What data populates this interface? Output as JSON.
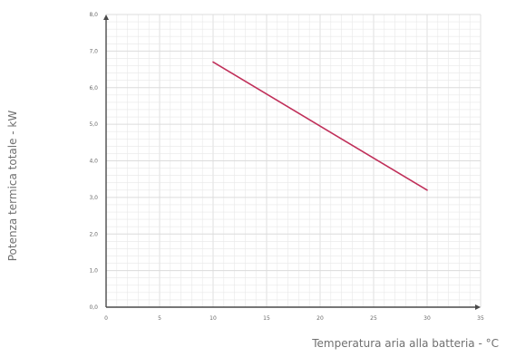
{
  "chart_data": {
    "type": "line",
    "xlabel": "Temperatura aria alla batteria - °C",
    "ylabel": "Potenza termica totale - kW",
    "xlim": [
      0,
      35
    ],
    "ylim": [
      0,
      8
    ],
    "x_ticks": [
      "0",
      "5",
      "10",
      "15",
      "20",
      "25",
      "30",
      "35"
    ],
    "y_ticks": [
      "0,0",
      "1,0",
      "2,0",
      "3,0",
      "4,0",
      "5,0",
      "6,0",
      "7,0",
      "8,0"
    ],
    "grid": true,
    "series": [
      {
        "x": [
          10,
          30
        ],
        "y": [
          6.7,
          3.2
        ],
        "color": "#c0305a"
      }
    ],
    "colors": {
      "line": "#c0305a",
      "grid": "#e8e8e8",
      "axis": "#4a4a4a"
    }
  }
}
